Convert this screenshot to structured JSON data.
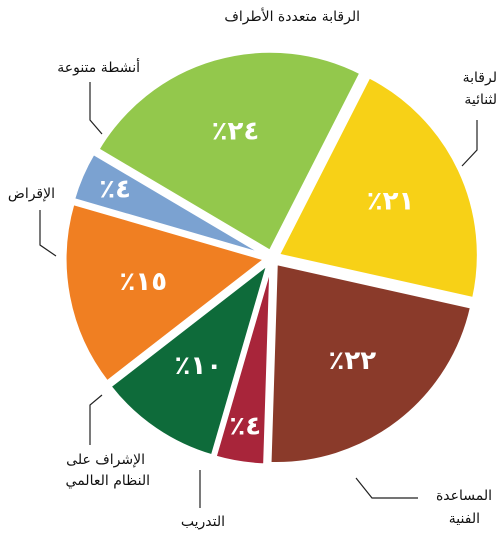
{
  "chart_data": {
    "type": "pie",
    "categories": [
      [
        "لرقابة",
        "لثنائية"
      ],
      [
        "المساعدة",
        "الفنية"
      ],
      [
        "التدريب"
      ],
      [
        "الإشراف على",
        "النظام العالمي"
      ],
      [
        "الإقراض"
      ],
      [
        "أنشطة متنوعة"
      ],
      [
        "الرقابة متعددة الأطراف"
      ]
    ],
    "values": [
      21,
      22,
      4,
      10,
      15,
      4,
      24
    ],
    "value_labels": [
      "٢١٪",
      "٢٢٪",
      "٤٪",
      "١٠٪",
      "١٥٪",
      "٤٪",
      "٢٤٪"
    ],
    "colors": [
      "#f7d117",
      "#8a3a2a",
      "#a8253a",
      "#0e6b3a",
      "#f07f22",
      "#7ba2d1",
      "#93c84c"
    ]
  }
}
